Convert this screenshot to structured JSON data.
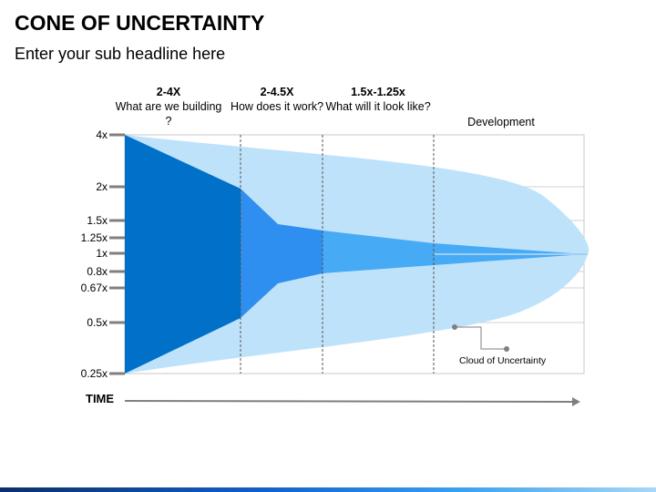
{
  "title": "CONE OF UNCERTAINTY",
  "subtitle": "Enter your sub headline here",
  "phases": [
    {
      "head": "2-4X",
      "text": "What are we building ?"
    },
    {
      "head": "2-4.5X",
      "text": "How does it work?"
    },
    {
      "head": "1.5x-1.25x",
      "text": "What will it look like?"
    },
    {
      "head": "",
      "text": "Development"
    }
  ],
  "y_ticks": [
    "4x",
    "2x",
    "1.5x",
    "1.25x",
    "1x",
    "0.8x",
    "0.67x",
    "0.5x",
    "0.25x"
  ],
  "time_label": "TIME",
  "cloud_label": "Cloud of Uncertainty",
  "colors": {
    "cone_dark": "#0070c8",
    "cone_mid": "#2f8ff0",
    "cone_light": "#47aaf5",
    "cloud": "#bfe2fb",
    "axis_tick": "#7f7f7f",
    "grid": "#d0d0d0"
  }
}
